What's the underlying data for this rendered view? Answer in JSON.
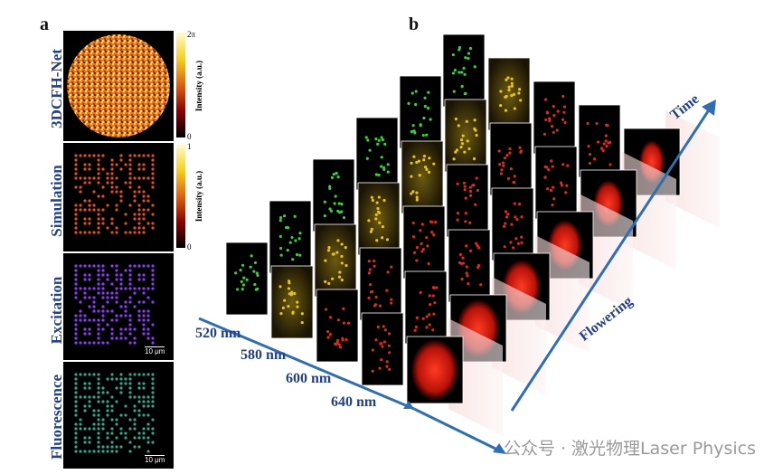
{
  "panel_a": {
    "letter": "a",
    "rows": [
      "3DCFH-Net",
      "Simulation",
      "Excitation",
      "Fluorescence"
    ],
    "colorbar_phase": {
      "top": "2π",
      "bottom": "0",
      "title": "Intensity (a.u.)"
    },
    "colorbar_sim": {
      "top": "1",
      "bottom": "0",
      "title": "Intensity (a.u.)"
    },
    "scalebar": "10 μm"
  },
  "panel_b": {
    "letter": "b",
    "wavelengths": [
      "520 nm",
      "580 nm",
      "600 nm",
      "640 nm"
    ],
    "flowering_label": "Flowering",
    "time_label": "Time",
    "colors": {
      "green": "#36d23a",
      "yellow": "#e8c21a",
      "red": "#e0281c",
      "axis": "#2e6fb3"
    }
  },
  "watermark": "公众号 · 激光物理Laser Physics"
}
